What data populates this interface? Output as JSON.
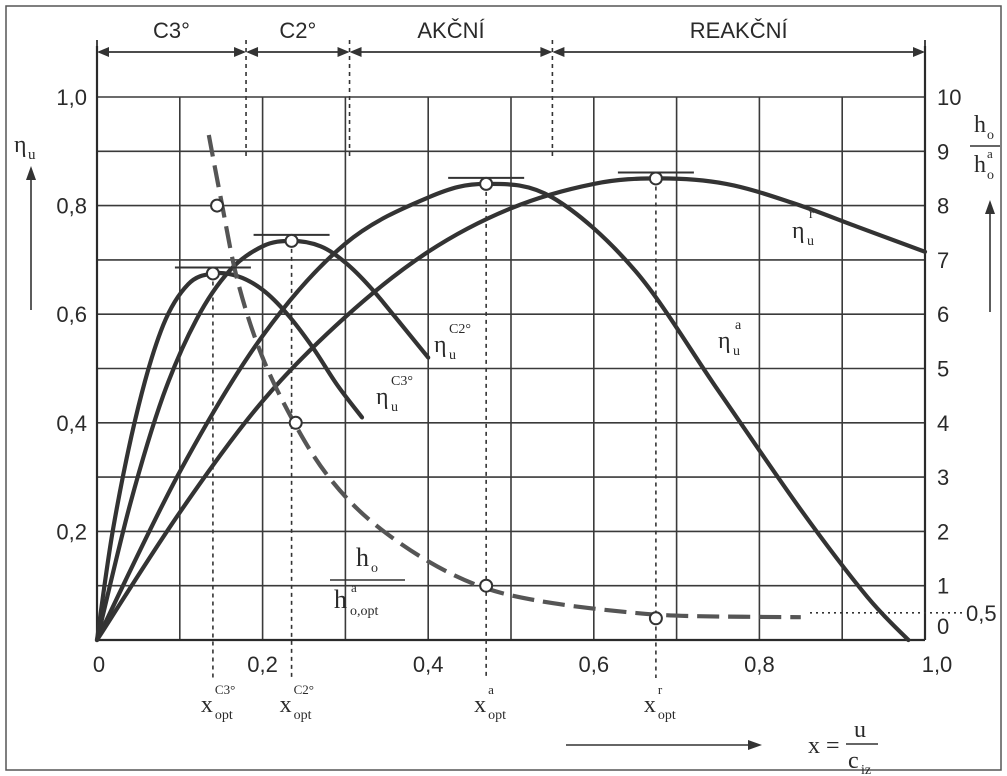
{
  "chart_data": {
    "type": "line",
    "x_axis": {
      "range": [
        0,
        1.0
      ],
      "ticks": [
        "0",
        "0,2",
        "0,4",
        "0,6",
        "0,8",
        "1,0"
      ],
      "tick_values": [
        0,
        0.2,
        0.4,
        0.6,
        0.8,
        1.0
      ],
      "label": {
        "lhs": "x =",
        "num": "u",
        "den_base": "c",
        "den_sub": "iz"
      }
    },
    "y_left": {
      "range": [
        0,
        1.0
      ],
      "ticks": [
        "0,2",
        "0,4",
        "0,6",
        "0,8",
        "1,0"
      ],
      "tick_values": [
        0.2,
        0.4,
        0.6,
        0.8,
        1.0
      ],
      "label_base": "η",
      "label_sub": "u"
    },
    "y_right": {
      "range": [
        0,
        10
      ],
      "ticks": [
        "0",
        "1",
        "2",
        "3",
        "4",
        "5",
        "6",
        "7",
        "8",
        "9",
        "10"
      ],
      "tick_values": [
        0,
        1,
        2,
        3,
        4,
        5,
        6,
        7,
        8,
        9,
        10
      ],
      "label": {
        "num_base": "h",
        "num_sub": "o",
        "den_base": "h",
        "den_sub": "o",
        "den_sup": "a"
      },
      "reference_value": 0.5,
      "reference_label": "0,5"
    },
    "regions": [
      {
        "label": "C3°",
        "from": 0,
        "to": 0.18
      },
      {
        "label": "C2°",
        "from": 0.18,
        "to": 0.305
      },
      {
        "label": "AKČNÍ",
        "from": 0.305,
        "to": 0.55
      },
      {
        "label": "REAKČNÍ",
        "from": 0.55,
        "to": 1.0
      }
    ],
    "series": [
      {
        "key": "c3",
        "label": {
          "base": "η",
          "sub": "u",
          "sup": "C3°"
        },
        "axis": "left",
        "x": [
          0,
          0.02,
          0.05,
          0.08,
          0.11,
          0.14,
          0.17,
          0.2,
          0.23,
          0.26,
          0.29,
          0.32
        ],
        "y": [
          0,
          0.21,
          0.43,
          0.58,
          0.655,
          0.675,
          0.67,
          0.645,
          0.6,
          0.54,
          0.47,
          0.41
        ]
      },
      {
        "key": "c2",
        "label": {
          "base": "η",
          "sub": "u",
          "sup": "C2°"
        },
        "axis": "left",
        "x": [
          0,
          0.04,
          0.08,
          0.12,
          0.16,
          0.2,
          0.235,
          0.27,
          0.3,
          0.33,
          0.36,
          0.4
        ],
        "y": [
          0,
          0.25,
          0.45,
          0.59,
          0.68,
          0.725,
          0.735,
          0.725,
          0.695,
          0.65,
          0.595,
          0.52
        ]
      },
      {
        "key": "a",
        "label": {
          "base": "η",
          "sub": "u",
          "sup": "a"
        },
        "axis": "left",
        "x": [
          0,
          0.1,
          0.2,
          0.3,
          0.4,
          0.47,
          0.55,
          0.65,
          0.75,
          0.85,
          0.93,
          0.98
        ],
        "y": [
          0,
          0.31,
          0.56,
          0.73,
          0.815,
          0.84,
          0.815,
          0.68,
          0.46,
          0.24,
          0.08,
          0.0
        ]
      },
      {
        "key": "r",
        "label": {
          "base": "η",
          "sub": "u",
          "sup": "r"
        },
        "axis": "left",
        "x": [
          0,
          0.1,
          0.2,
          0.3,
          0.4,
          0.5,
          0.6,
          0.68,
          0.76,
          0.84,
          0.92,
          1.0
        ],
        "y": [
          0,
          0.235,
          0.44,
          0.595,
          0.715,
          0.795,
          0.84,
          0.85,
          0.84,
          0.805,
          0.76,
          0.715
        ]
      },
      {
        "key": "h",
        "label": {
          "num_base": "h",
          "num_sub": "o",
          "den_base": "h",
          "den_sub": "o,opt",
          "den_sup": "a"
        },
        "axis": "right",
        "x": [
          0.135,
          0.15,
          0.17,
          0.2,
          0.24,
          0.28,
          0.33,
          0.4,
          0.47,
          0.55,
          0.65,
          0.72,
          0.85
        ],
        "y": [
          9.3,
          8.1,
          6.6,
          5.2,
          3.95,
          3.0,
          2.2,
          1.45,
          0.95,
          0.68,
          0.5,
          0.44,
          0.42
        ]
      }
    ],
    "markers": [
      {
        "x": 0.14,
        "y": 0.675,
        "axis": "left"
      },
      {
        "x": 0.235,
        "y": 0.735,
        "axis": "left"
      },
      {
        "x": 0.47,
        "y": 0.84,
        "axis": "left"
      },
      {
        "x": 0.675,
        "y": 0.85,
        "axis": "left"
      },
      {
        "x": 0.145,
        "y": 8.0,
        "axis": "right"
      },
      {
        "x": 0.24,
        "y": 4.0,
        "axis": "right"
      },
      {
        "x": 0.47,
        "y": 1.0,
        "axis": "right"
      },
      {
        "x": 0.675,
        "y": 0.4,
        "axis": "right"
      }
    ],
    "x_opt_labels": [
      {
        "x": 0.14,
        "base": "x",
        "sub": "opt",
        "sup": "C3°"
      },
      {
        "x": 0.235,
        "base": "x",
        "sub": "opt",
        "sup": "C2°"
      },
      {
        "x": 0.47,
        "base": "x",
        "sub": "opt",
        "sup": "a"
      },
      {
        "x": 0.675,
        "base": "x",
        "sub": "opt",
        "sup": "r"
      }
    ],
    "grid": true
  }
}
